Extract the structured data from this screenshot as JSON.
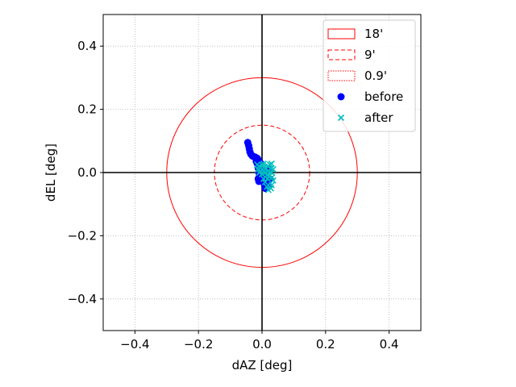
{
  "chart_data": {
    "type": "scatter",
    "title": "",
    "xlabel": "dAZ [deg]",
    "ylabel": "dEL [deg]",
    "xlim": [
      -0.5,
      0.5
    ],
    "ylim": [
      -0.5,
      0.5
    ],
    "xticks": [
      -0.4,
      -0.2,
      0.0,
      0.2,
      0.4
    ],
    "yticks": [
      -0.4,
      -0.2,
      0.0,
      0.2,
      0.4
    ],
    "xtick_labels": [
      "−0.4",
      "−0.2",
      "0.0",
      "0.2",
      "0.4"
    ],
    "ytick_labels": [
      "−0.4",
      "−0.2",
      "0.0",
      "0.2",
      "0.4"
    ],
    "grid": true,
    "grid_style": "dotted",
    "legend_position": "top-right",
    "reference_lines": {
      "x": 0,
      "y": 0,
      "color": "#000000"
    },
    "circles": [
      {
        "name": "18'",
        "radius_deg": 0.3,
        "style": "solid",
        "color": "#ff0000"
      },
      {
        "name": "9'",
        "radius_deg": 0.15,
        "style": "dashed",
        "color": "#ff0000"
      },
      {
        "name": "0.9'",
        "radius_deg": 0.015,
        "style": "dotted",
        "color": "#ff0000"
      }
    ],
    "series": [
      {
        "name": "before",
        "marker": "circle",
        "color": "#0000ff",
        "points": [
          [
            -0.045,
            0.095
          ],
          [
            -0.042,
            0.085
          ],
          [
            -0.04,
            0.075
          ],
          [
            -0.038,
            0.065
          ],
          [
            -0.035,
            0.058
          ],
          [
            -0.03,
            0.052
          ],
          [
            -0.025,
            0.05
          ],
          [
            -0.02,
            0.048
          ],
          [
            -0.015,
            0.045
          ],
          [
            -0.012,
            0.04
          ],
          [
            -0.018,
            0.035
          ],
          [
            -0.015,
            0.028
          ],
          [
            -0.01,
            0.022
          ],
          [
            -0.012,
            0.015
          ],
          [
            -0.01,
            0.01
          ],
          [
            -0.008,
            0.005
          ],
          [
            -0.01,
            0.0
          ],
          [
            -0.005,
            -0.005
          ],
          [
            -0.008,
            -0.012
          ],
          [
            -0.012,
            -0.02
          ],
          [
            -0.01,
            -0.028
          ],
          [
            0.0,
            0.01
          ],
          [
            0.005,
            0.0
          ],
          [
            0.01,
            -0.01
          ],
          [
            0.012,
            -0.02
          ],
          [
            0.015,
            -0.03
          ],
          [
            0.018,
            -0.035
          ],
          [
            0.02,
            -0.042
          ],
          [
            0.01,
            -0.05
          ],
          [
            0.008,
            -0.04
          ],
          [
            0.025,
            -0.02
          ],
          [
            0.022,
            0.01
          ],
          [
            -0.005,
            0.03
          ],
          [
            0.002,
            -0.015
          ]
        ]
      },
      {
        "name": "after",
        "marker": "x",
        "color": "#00bfbf",
        "points": [
          [
            -0.015,
            0.025
          ],
          [
            -0.01,
            0.02
          ],
          [
            -0.012,
            0.01
          ],
          [
            -0.008,
            0.0
          ],
          [
            -0.005,
            0.015
          ],
          [
            0.0,
            0.025
          ],
          [
            0.005,
            0.028
          ],
          [
            0.008,
            0.018
          ],
          [
            0.01,
            0.01
          ],
          [
            0.012,
            0.0
          ],
          [
            0.015,
            -0.008
          ],
          [
            0.018,
            0.02
          ],
          [
            0.02,
            0.005
          ],
          [
            0.022,
            -0.012
          ],
          [
            0.025,
            0.025
          ],
          [
            0.028,
            0.012
          ],
          [
            0.03,
            0.0
          ],
          [
            0.032,
            -0.015
          ],
          [
            0.035,
            -0.025
          ],
          [
            0.03,
            -0.04
          ],
          [
            0.028,
            -0.05
          ],
          [
            0.02,
            -0.055
          ],
          [
            0.015,
            -0.045
          ],
          [
            0.01,
            -0.03
          ],
          [
            0.005,
            -0.02
          ],
          [
            0.0,
            -0.005
          ],
          [
            -0.005,
            0.005
          ],
          [
            0.03,
            0.028
          ],
          [
            0.035,
            0.01
          ],
          [
            0.018,
            -0.02
          ]
        ]
      }
    ]
  }
}
